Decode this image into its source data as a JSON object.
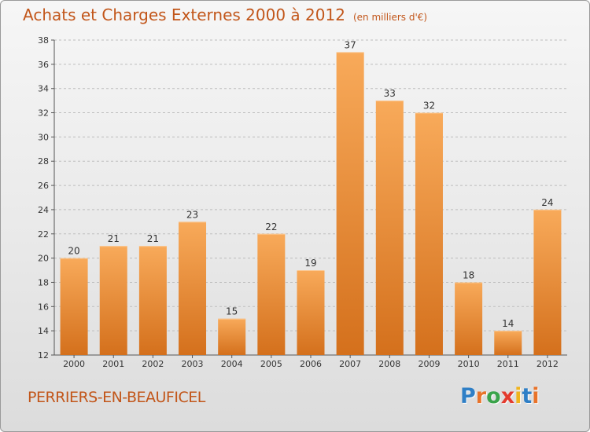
{
  "title": "Achats et Charges Externes 2000 à 2012",
  "subtitle": "(en milliers d'€)",
  "place": "PERRIERS-EN-BEAUFICEL",
  "logo": {
    "letters": [
      "P",
      "r",
      "o",
      "x",
      "i",
      "t",
      "i"
    ],
    "colors": [
      "#2f7fc6",
      "#e8732a",
      "#3aa34a",
      "#e33b2e",
      "#f0b41c",
      "#2f7fc6",
      "#e8732a"
    ]
  },
  "colors": {
    "accent": "#c2561a",
    "bar_light": "#f8aa5a",
    "bar_dark": "#d4701c",
    "grid": "#bdbdbd"
  },
  "chart_data": {
    "type": "bar",
    "title": "Achats et Charges Externes 2000 à 2012",
    "subtitle": "(en milliers d'€)",
    "categories": [
      "2000",
      "2001",
      "2002",
      "2003",
      "2004",
      "2005",
      "2006",
      "2007",
      "2008",
      "2009",
      "2010",
      "2011",
      "2012"
    ],
    "values": [
      20,
      21,
      21,
      23,
      15,
      22,
      19,
      37,
      33,
      32,
      18,
      14,
      24
    ],
    "ylim": [
      12,
      38
    ],
    "yticks": [
      12,
      14,
      16,
      18,
      20,
      22,
      24,
      26,
      28,
      30,
      32,
      34,
      36,
      38
    ],
    "grid": true,
    "xlabel": "",
    "ylabel": ""
  }
}
